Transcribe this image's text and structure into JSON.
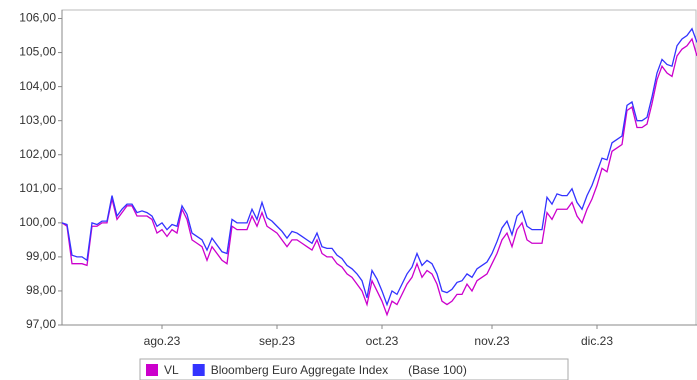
{
  "chart_data": {
    "type": "line",
    "categories": [
      null,
      null,
      null,
      null,
      null,
      null,
      null,
      null,
      null,
      null,
      null,
      null,
      null,
      null,
      null,
      null,
      null,
      null,
      null,
      null,
      "ago.23",
      null,
      null,
      null,
      null,
      null,
      null,
      null,
      null,
      null,
      null,
      null,
      null,
      null,
      null,
      null,
      null,
      null,
      null,
      null,
      null,
      null,
      null,
      "sep.23",
      null,
      null,
      null,
      null,
      null,
      null,
      null,
      null,
      null,
      null,
      null,
      null,
      null,
      null,
      null,
      null,
      null,
      null,
      null,
      null,
      "oct.23",
      null,
      null,
      null,
      null,
      null,
      null,
      null,
      null,
      null,
      null,
      null,
      null,
      null,
      null,
      null,
      null,
      null,
      null,
      null,
      null,
      null,
      "nov.23",
      null,
      null,
      null,
      null,
      null,
      null,
      null,
      null,
      null,
      null,
      null,
      null,
      null,
      null,
      null,
      null,
      null,
      null,
      null,
      null,
      "dic.23",
      null,
      null,
      null,
      null,
      null,
      null,
      null,
      null,
      null,
      null,
      null,
      null,
      null,
      null,
      null,
      null,
      null,
      null,
      null,
      null
    ],
    "series": [
      {
        "name": "VL",
        "color": "#cc00cc",
        "values": [
          100.0,
          99.9,
          98.8,
          98.8,
          98.8,
          98.75,
          99.9,
          99.9,
          100.0,
          100.0,
          100.7,
          100.1,
          100.3,
          100.5,
          100.5,
          100.2,
          100.2,
          100.2,
          100.1,
          99.7,
          99.8,
          99.6,
          99.8,
          99.7,
          100.4,
          100.1,
          99.5,
          99.4,
          99.3,
          98.9,
          99.3,
          99.1,
          98.9,
          98.8,
          99.9,
          99.8,
          99.8,
          99.8,
          100.2,
          99.9,
          100.3,
          99.9,
          99.8,
          99.7,
          99.5,
          99.3,
          99.5,
          99.5,
          99.4,
          99.3,
          99.2,
          99.5,
          99.1,
          99.0,
          99.0,
          98.8,
          98.7,
          98.5,
          98.4,
          98.2,
          98.0,
          97.6,
          98.3,
          98.0,
          97.7,
          97.3,
          97.7,
          97.6,
          97.9,
          98.2,
          98.4,
          98.8,
          98.4,
          98.6,
          98.5,
          98.2,
          97.7,
          97.6,
          97.7,
          97.9,
          97.9,
          98.2,
          98.0,
          98.3,
          98.4,
          98.5,
          98.8,
          99.1,
          99.5,
          99.7,
          99.3,
          99.8,
          100.0,
          99.5,
          99.4,
          99.4,
          99.4,
          100.3,
          100.1,
          100.4,
          100.4,
          100.4,
          100.6,
          100.2,
          100.0,
          100.4,
          100.7,
          101.1,
          101.6,
          101.5,
          102.1,
          102.2,
          102.3,
          103.3,
          103.4,
          102.8,
          102.8,
          102.9,
          103.5,
          104.2,
          104.6,
          104.4,
          104.3,
          104.9,
          105.1,
          105.2,
          105.4,
          104.9
        ]
      },
      {
        "name": "Bloomberg Euro Aggregate Index",
        "color": "#3333ff",
        "values": [
          100.0,
          99.95,
          99.05,
          99.0,
          99.0,
          98.9,
          100.0,
          99.95,
          100.05,
          100.05,
          100.8,
          100.2,
          100.4,
          100.55,
          100.55,
          100.3,
          100.35,
          100.3,
          100.2,
          99.9,
          100.0,
          99.8,
          99.95,
          99.9,
          100.5,
          100.25,
          99.7,
          99.6,
          99.5,
          99.2,
          99.55,
          99.35,
          99.15,
          99.1,
          100.1,
          100.0,
          100.0,
          100.0,
          100.4,
          100.1,
          100.6,
          100.15,
          100.05,
          99.9,
          99.75,
          99.55,
          99.75,
          99.7,
          99.6,
          99.5,
          99.4,
          99.7,
          99.3,
          99.25,
          99.25,
          99.05,
          98.95,
          98.75,
          98.65,
          98.5,
          98.3,
          97.8,
          98.6,
          98.35,
          98.0,
          97.6,
          98.0,
          97.9,
          98.2,
          98.5,
          98.7,
          99.1,
          98.75,
          98.9,
          98.8,
          98.5,
          98.0,
          97.95,
          98.05,
          98.25,
          98.3,
          98.5,
          98.4,
          98.65,
          98.75,
          98.85,
          99.1,
          99.45,
          99.85,
          100.05,
          99.65,
          100.2,
          100.35,
          99.9,
          99.8,
          99.8,
          99.8,
          100.75,
          100.55,
          100.85,
          100.8,
          100.8,
          101.0,
          100.6,
          100.4,
          100.8,
          101.1,
          101.5,
          101.9,
          101.85,
          102.35,
          102.45,
          102.55,
          103.45,
          103.55,
          103.0,
          103.0,
          103.1,
          103.7,
          104.4,
          104.8,
          104.65,
          104.6,
          105.2,
          105.4,
          105.5,
          105.7,
          105.3
        ]
      }
    ],
    "legend_note": "(Base 100)",
    "ylim": [
      97,
      106.25
    ],
    "yticks": [
      {
        "value": 97,
        "label": "97,00"
      },
      {
        "value": 98,
        "label": "98,00"
      },
      {
        "value": 99,
        "label": "99,00"
      },
      {
        "value": 100,
        "label": "100,00"
      },
      {
        "value": 101,
        "label": "101,00"
      },
      {
        "value": 102,
        "label": "102,00"
      },
      {
        "value": 103,
        "label": "103,00"
      },
      {
        "value": 104,
        "label": "104,00"
      },
      {
        "value": 105,
        "label": "105,00"
      },
      {
        "value": 106,
        "label": "106,00"
      }
    ],
    "grid": false,
    "legend": "bottom"
  }
}
